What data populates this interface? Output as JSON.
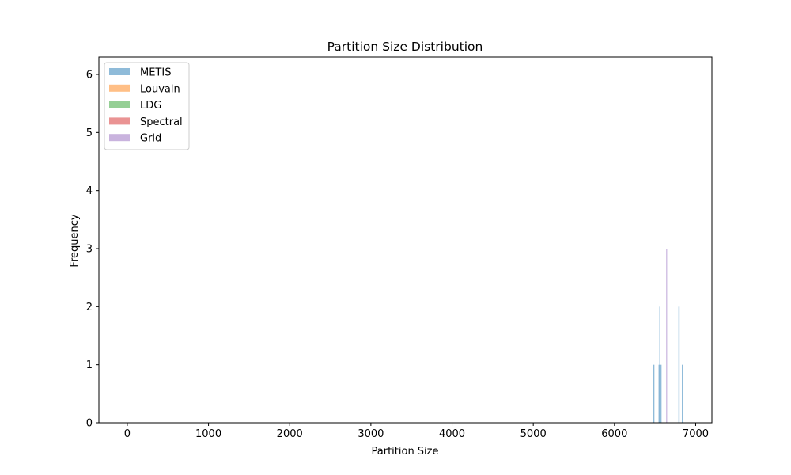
{
  "chart_data": {
    "type": "bar",
    "title": "Partition Size Distribution",
    "xlabel": "Partition Size",
    "ylabel": "Frequency",
    "xlim": [
      -350,
      7200
    ],
    "ylim": [
      0,
      6.3
    ],
    "xticks": [
      0,
      1000,
      2000,
      3000,
      4000,
      5000,
      6000,
      7000
    ],
    "yticks": [
      0,
      1,
      2,
      3,
      4,
      5,
      6
    ],
    "legend_position": "upper-left",
    "bar_opacity": 0.5,
    "series": [
      {
        "name": "METIS",
        "color": "#1f77b4",
        "bins": [
          {
            "x0": 6474,
            "x1": 6492,
            "count": 1
          },
          {
            "x0": 6543,
            "x1": 6553,
            "count": 1
          },
          {
            "x0": 6553,
            "x1": 6566,
            "count": 2
          },
          {
            "x0": 6566,
            "x1": 6580,
            "count": 1
          },
          {
            "x0": 6788,
            "x1": 6802,
            "count": 2
          },
          {
            "x0": 6830,
            "x1": 6845,
            "count": 1
          }
        ]
      },
      {
        "name": "Louvain",
        "color": "#ff7f0e",
        "bins": []
      },
      {
        "name": "LDG",
        "color": "#2ca02c",
        "bins": []
      },
      {
        "name": "Spectral",
        "color": "#d62728",
        "bins": []
      },
      {
        "name": "Grid",
        "color": "#9467bd",
        "bins": [
          {
            "x0": 6637,
            "x1": 6645,
            "count": 3
          }
        ]
      }
    ]
  }
}
